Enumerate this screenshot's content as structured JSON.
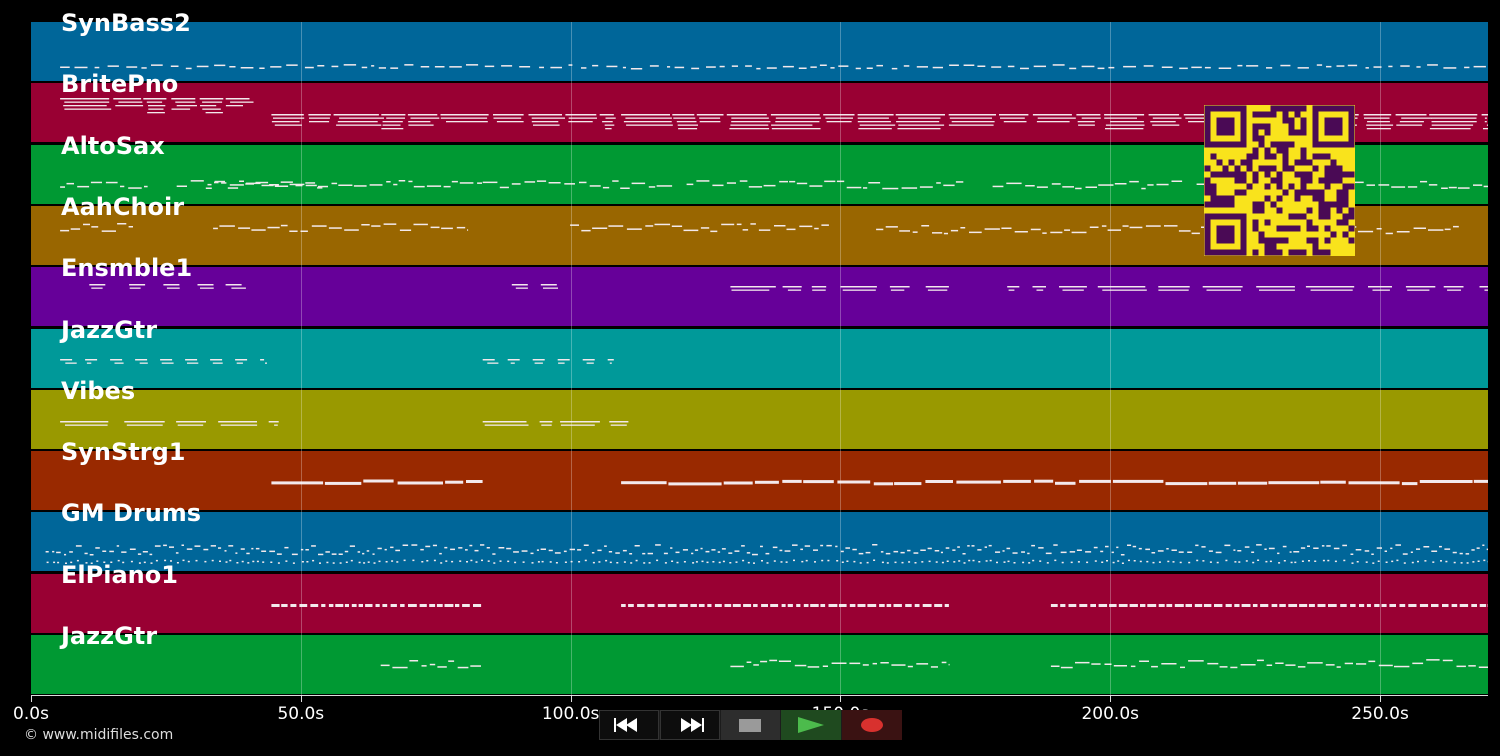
{
  "tracks": [
    {
      "name": "SynBass2",
      "color": "#006699"
    },
    {
      "name": "BritePno",
      "color": "#990033"
    },
    {
      "name": "AltoSax",
      "color": "#009933"
    },
    {
      "name": "AahChoir",
      "color": "#996600"
    },
    {
      "name": "Ensmble1",
      "color": "#660099"
    },
    {
      "name": "JazzGtr",
      "color": "#009999"
    },
    {
      "name": "Vibes",
      "color": "#999900"
    },
    {
      "name": "SynStrg1",
      "color": "#992900"
    },
    {
      "name": "GM Drums",
      "color": "#006699"
    },
    {
      "name": "ElPiano1",
      "color": "#990033"
    },
    {
      "name": "JazzGtr",
      "color": "#009933"
    }
  ],
  "timeline": {
    "max_seconds": 270,
    "ticks": [
      {
        "value": 0,
        "label": "0.0s"
      },
      {
        "value": 50,
        "label": "50.0s"
      },
      {
        "value": 100,
        "label": "100.0s"
      },
      {
        "value": 150,
        "label": "150.0s"
      },
      {
        "value": 200,
        "label": "200.0s"
      },
      {
        "value": 250,
        "label": "250.0s"
      }
    ]
  },
  "copyright": "© www.midifiles.com",
  "transport": {
    "rewind_icon": "rewind-icon",
    "fast_forward_icon": "fast-forward-icon",
    "stop_icon": "stop-icon",
    "play_icon": "play-icon",
    "record_icon": "record-icon",
    "play_color": "#4cbb4c",
    "record_color": "#d8312e"
  },
  "qr_code": {
    "color": "#f9e31c",
    "module_color": "#4a0a55"
  }
}
